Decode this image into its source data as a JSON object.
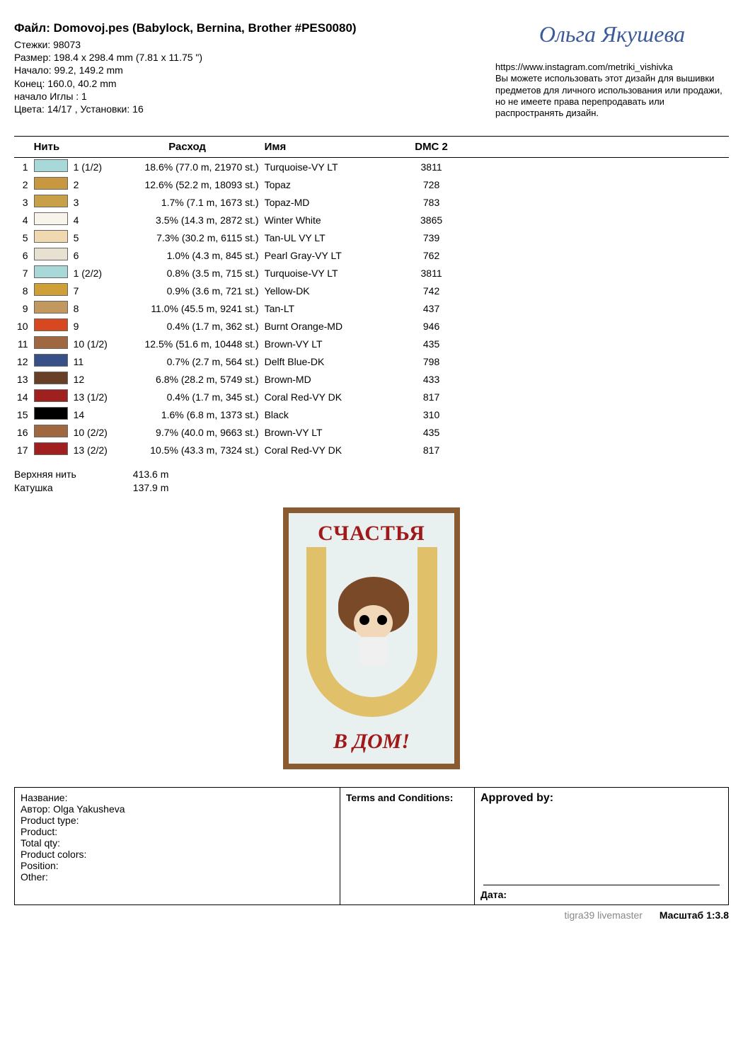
{
  "header": {
    "title": "Файл: Domovoj.pes  (Babylock, Bernina, Brother #PES0080)",
    "stitches": "Стежки: 98073",
    "size": "Размер: 198.4 x 298.4 mm (7.81 x 11.75 \")",
    "start": "Начало: 99.2, 149.2 mm",
    "end": "Конец: 160.0, 40.2 mm",
    "needle_start": "начало Иглы : 1",
    "colors": "Цвета: 14/17 , Установки: 16"
  },
  "signature": "Ольга Якушева",
  "disclaimer": {
    "url": "https://www.instagram.com/metriki_vishivka",
    "text": "Вы можете использовать этот дизайн для вышивки предметов для личного использования или продажи, но не имеете права перепродавать или распространять дизайн."
  },
  "table": {
    "headers": {
      "thread": "Нить",
      "usage": "Расход",
      "name": "Имя",
      "dmc": "DMC 2"
    },
    "rows": [
      {
        "idx": "1",
        "color": "#a8d8d8",
        "tnum": "1 (1/2)",
        "usage": "18.6% (77.0 m, 21970 st.)",
        "name": "Turquoise-VY LT",
        "dmc": "3811"
      },
      {
        "idx": "2",
        "color": "#c89840",
        "tnum": "2",
        "usage": "12.6% (52.2 m, 18093 st.)",
        "name": "Topaz",
        "dmc": "728"
      },
      {
        "idx": "3",
        "color": "#c8a048",
        "tnum": "3",
        "usage": "1.7% (7.1 m, 1673 st.)",
        "name": "Topaz-MD",
        "dmc": "783"
      },
      {
        "idx": "4",
        "color": "#f8f4ec",
        "tnum": "4",
        "usage": "3.5% (14.3 m, 2872 st.)",
        "name": "Winter White",
        "dmc": "3865"
      },
      {
        "idx": "5",
        "color": "#f0d8b0",
        "tnum": "5",
        "usage": "7.3% (30.2 m, 6115 st.)",
        "name": "Tan-UL VY LT",
        "dmc": "739"
      },
      {
        "idx": "6",
        "color": "#e8e0d0",
        "tnum": "6",
        "usage": "1.0% (4.3 m, 845 st.)",
        "name": "Pearl Gray-VY LT",
        "dmc": "762"
      },
      {
        "idx": "7",
        "color": "#a8d8d8",
        "tnum": "1 (2/2)",
        "usage": "0.8% (3.5 m, 715 st.)",
        "name": "Turquoise-VY LT",
        "dmc": "3811"
      },
      {
        "idx": "8",
        "color": "#d0a038",
        "tnum": "7",
        "usage": "0.9% (3.6 m, 721 st.)",
        "name": "Yellow-DK",
        "dmc": "742"
      },
      {
        "idx": "9",
        "color": "#c09860",
        "tnum": "8",
        "usage": "11.0% (45.5 m, 9241 st.)",
        "name": "Tan-LT",
        "dmc": "437"
      },
      {
        "idx": "10",
        "color": "#d84820",
        "tnum": "9",
        "usage": "0.4% (1.7 m, 362 st.)",
        "name": "Burnt Orange-MD",
        "dmc": "946"
      },
      {
        "idx": "11",
        "color": "#a06840",
        "tnum": "10 (1/2)",
        "usage": "12.5% (51.6 m, 10448 st.)",
        "name": "Brown-VY LT",
        "dmc": "435"
      },
      {
        "idx": "12",
        "color": "#385088",
        "tnum": "11",
        "usage": "0.7% (2.7 m, 564 st.)",
        "name": "Delft Blue-DK",
        "dmc": "798"
      },
      {
        "idx": "13",
        "color": "#684028",
        "tnum": "12",
        "usage": "6.8% (28.2 m, 5749 st.)",
        "name": "Brown-MD",
        "dmc": "433"
      },
      {
        "idx": "14",
        "color": "#a02020",
        "tnum": "13 (1/2)",
        "usage": "0.4% (1.7 m, 345 st.)",
        "name": "Coral Red-VY DK",
        "dmc": "817"
      },
      {
        "idx": "15",
        "color": "#000000",
        "tnum": "14",
        "usage": "1.6% (6.8 m, 1373 st.)",
        "name": "Black",
        "dmc": "310"
      },
      {
        "idx": "16",
        "color": "#a06840",
        "tnum": "10 (2/2)",
        "usage": "9.7% (40.0 m, 9663 st.)",
        "name": "Brown-VY LT",
        "dmc": "435"
      },
      {
        "idx": "17",
        "color": "#a02020",
        "tnum": "13 (2/2)",
        "usage": "10.5% (43.3 m, 7324 st.)",
        "name": "Coral Red-VY DK",
        "dmc": "817"
      }
    ]
  },
  "totals": {
    "upper_label": "Верхняя нить",
    "upper_val": "413.6 m",
    "bobbin_label": "Катушка",
    "bobbin_val": "137.9 m"
  },
  "preview": {
    "top": "СЧАСТЬЯ",
    "bottom": "В ДОМ!"
  },
  "footer": {
    "box1": [
      "Название:",
      "Автор: Olga Yakusheva",
      "Product type:",
      "Product:",
      "Total qty:",
      "Product colors:",
      "Position:",
      "Other:"
    ],
    "box2": "Terms and Conditions:",
    "box3_title": "Approved by:",
    "box3_date": "Дата:"
  },
  "bottom": {
    "watermark": "tigra39 livemaster",
    "scale": "Масштаб 1:3.8"
  }
}
